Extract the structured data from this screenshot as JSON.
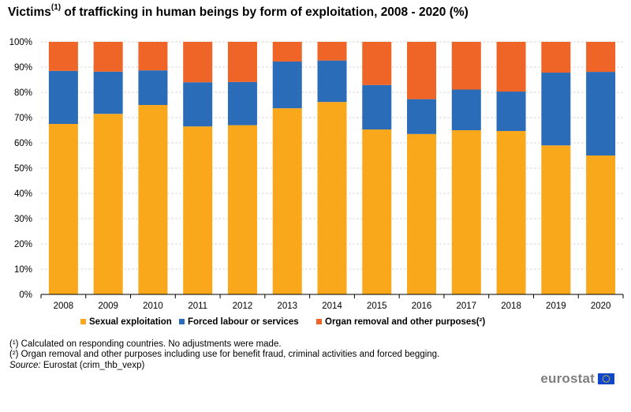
{
  "header": {
    "title_before_sup": "Victims",
    "title_sup": "(1)",
    "title_after_sup": " of trafficking in human beings by form of exploitation, 2008 - 2020 (%)"
  },
  "chart_data": {
    "type": "bar",
    "stacked": true,
    "title": "Victims(1) of trafficking in human beings by form of exploitation, 2008 - 2020 (%)",
    "xlabel": "",
    "ylabel": "",
    "ylim": [
      0,
      100
    ],
    "yticks": [
      "0%",
      "10%",
      "20%",
      "30%",
      "40%",
      "50%",
      "60%",
      "70%",
      "80%",
      "90%",
      "100%"
    ],
    "grid": true,
    "legend_position": "bottom",
    "categories": [
      "2008",
      "2009",
      "2010",
      "2011",
      "2012",
      "2013",
      "2014",
      "2015",
      "2016",
      "2017",
      "2018",
      "2019",
      "2020"
    ],
    "series": [
      {
        "name": "Sexual exploitation",
        "color": "#f9a81b",
        "values": [
          67.5,
          71.5,
          75.0,
          66.5,
          67.0,
          73.7,
          76.2,
          65.3,
          63.5,
          65.0,
          64.7,
          59.0,
          55.0
        ]
      },
      {
        "name": "Forced labour or services",
        "color": "#2b6cb8",
        "values": [
          21.0,
          16.7,
          13.7,
          17.5,
          17.1,
          18.5,
          16.4,
          17.6,
          13.8,
          16.1,
          15.6,
          28.8,
          33.1
        ]
      },
      {
        "name": "Organ removal and other purposes(²)",
        "color": "#ef6427",
        "values": [
          11.5,
          11.8,
          11.3,
          16.0,
          15.9,
          7.8,
          7.4,
          17.1,
          22.7,
          18.9,
          19.7,
          12.2,
          11.9
        ]
      }
    ]
  },
  "footnotes": {
    "note1": "(¹) Calculated on responding countries. No adjustments were made.",
    "note2": "(²) Organ removal and other purposes including use for benefit fraud, criminal activities and forced begging.",
    "source_label": "Source:",
    "source_text": " Eurostat (crim_thb_vexp)"
  },
  "branding": {
    "logo_text": "eurostat",
    "flag_color": "#0e47cb",
    "star_color": "#ffdd00"
  },
  "style": {
    "grid_color": "#d9d9d9",
    "axis_color": "#000000"
  }
}
